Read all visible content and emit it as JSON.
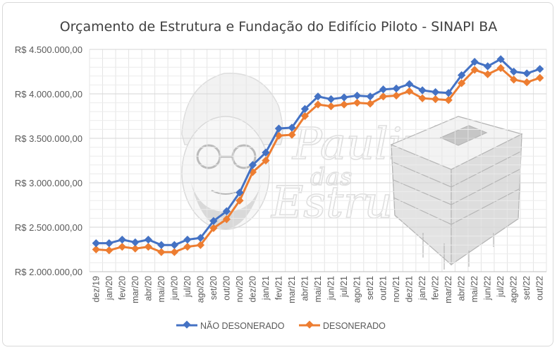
{
  "chart_data": {
    "type": "line",
    "title": "Orçamento de Estrutura e Fundação do Edifício Piloto - SINAPI BA",
    "xlabel": "",
    "ylabel": "",
    "ylim": [
      2000000,
      4500000
    ],
    "y_ticks": [
      2000000,
      2500000,
      3000000,
      3500000,
      4000000,
      4500000
    ],
    "y_tick_labels": [
      "R$ 2.000.000,00",
      "R$ 2.500.000,00",
      "R$ 3.000.000,00",
      "R$ 3.500.000,00",
      "R$ 4.000.000,00",
      "R$ 4.500.000,00"
    ],
    "grid": true,
    "legend_position": "bottom",
    "categories": [
      "dez/19",
      "jan/20",
      "fev/20",
      "mar/20",
      "abr/20",
      "mai/20",
      "jun/20",
      "jul/20",
      "ago/20",
      "set/20",
      "out/20",
      "nov/20",
      "dez/20",
      "jan/21",
      "fev/21",
      "mar/21",
      "abr/21",
      "mai/21",
      "jun/21",
      "jul/21",
      "ago/21",
      "set/21",
      "out/21",
      "nov/21",
      "dez/21",
      "jan/22",
      "fev/22",
      "mar/22",
      "abr/22",
      "mai/22",
      "jun/22",
      "jul/22",
      "ago/22",
      "set/22",
      "out/22"
    ],
    "series": [
      {
        "name": "NÃO DESONERADO",
        "color": "#4472c4",
        "marker": "diamond",
        "values": [
          2320000,
          2320000,
          2360000,
          2330000,
          2360000,
          2300000,
          2300000,
          2360000,
          2380000,
          2570000,
          2680000,
          2890000,
          3200000,
          3340000,
          3610000,
          3620000,
          3830000,
          3970000,
          3940000,
          3960000,
          3980000,
          3970000,
          4050000,
          4060000,
          4110000,
          4040000,
          4020000,
          4010000,
          4210000,
          4360000,
          4310000,
          4390000,
          4250000,
          4230000,
          4280000
        ]
      },
      {
        "name": "DESONERADO",
        "color": "#ed7d31",
        "marker": "diamond",
        "values": [
          2250000,
          2240000,
          2280000,
          2260000,
          2280000,
          2220000,
          2220000,
          2280000,
          2300000,
          2490000,
          2590000,
          2800000,
          3120000,
          3250000,
          3530000,
          3540000,
          3750000,
          3880000,
          3860000,
          3880000,
          3900000,
          3890000,
          3970000,
          3980000,
          4030000,
          3950000,
          3940000,
          3930000,
          4120000,
          4270000,
          4220000,
          4290000,
          4160000,
          4130000,
          4180000
        ]
      }
    ]
  },
  "watermark": {
    "text_lines": [
      "Paulinho",
      "das",
      "Estruturas"
    ],
    "icons": [
      "person-portrait-icon",
      "building-3d-model-icon"
    ]
  }
}
